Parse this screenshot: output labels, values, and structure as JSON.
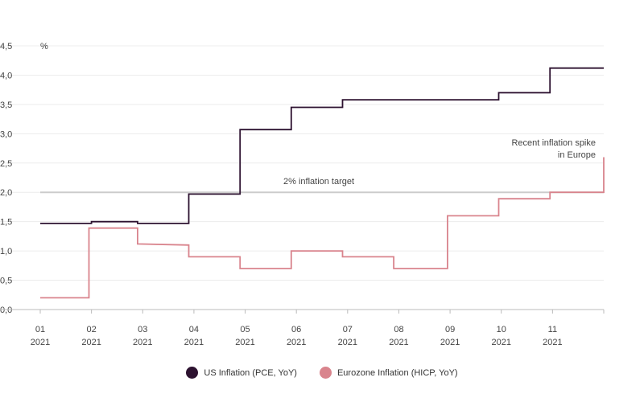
{
  "chart_data": {
    "type": "line",
    "unit_label": "%",
    "ylim": [
      0,
      4.5
    ],
    "yticks": [
      "0,0",
      "0,5",
      "1,0",
      "1,5",
      "2,0",
      "2,5",
      "3,0",
      "3,5",
      "4,0",
      "4,5"
    ],
    "ytick_values": [
      0,
      0.5,
      1,
      1.5,
      2,
      2.5,
      3,
      3.5,
      4,
      4.5
    ],
    "xticks": [
      {
        "month": "01",
        "year": "2021"
      },
      {
        "month": "02",
        "year": "2021"
      },
      {
        "month": "03",
        "year": "2021"
      },
      {
        "month": "04",
        "year": "2021"
      },
      {
        "month": "05",
        "year": "2021"
      },
      {
        "month": "06",
        "year": "2021"
      },
      {
        "month": "07",
        "year": "2021"
      },
      {
        "month": "08",
        "year": "2021"
      },
      {
        "month": "09",
        "year": "2021"
      },
      {
        "month": "10",
        "year": "2021"
      },
      {
        "month": "11",
        "year": "2021"
      }
    ],
    "grid": true,
    "legend_position": "bottom-center",
    "reference_line": {
      "value": 2.0,
      "label": "2% inflation target"
    },
    "annotation": {
      "lines": [
        "Recent inflation spike",
        "in Europe"
      ]
    },
    "series": [
      {
        "name": "US Inflation (PCE, YoY)",
        "color": "#2d1230",
        "points": [
          [
            1,
            1.47
          ],
          [
            2,
            1.47
          ],
          [
            2,
            1.5
          ],
          [
            2.9,
            1.5
          ],
          [
            2.9,
            1.47
          ],
          [
            3.9,
            1.47
          ],
          [
            3.9,
            1.97
          ],
          [
            4.9,
            1.97
          ],
          [
            4.9,
            3.07
          ],
          [
            5.9,
            3.07
          ],
          [
            5.9,
            3.45
          ],
          [
            6.9,
            3.45
          ],
          [
            6.9,
            3.58
          ],
          [
            8.95,
            3.58
          ],
          [
            9.95,
            3.58
          ],
          [
            9.95,
            3.7
          ],
          [
            10.95,
            3.7
          ],
          [
            10.95,
            4.12
          ],
          [
            12,
            4.12
          ]
        ]
      },
      {
        "name": "Eurozone Inflation (HICP, YoY)",
        "color": "#d9848d",
        "points": [
          [
            1,
            0.2
          ],
          [
            1.95,
            0.2
          ],
          [
            1.95,
            1.39
          ],
          [
            2.9,
            1.39
          ],
          [
            2.9,
            1.12
          ],
          [
            3.9,
            1.1
          ],
          [
            3.9,
            0.9
          ],
          [
            4.9,
            0.9
          ],
          [
            4.9,
            0.7
          ],
          [
            5.9,
            0.7
          ],
          [
            5.9,
            1.0
          ],
          [
            6.9,
            1.0
          ],
          [
            6.9,
            0.9
          ],
          [
            7.9,
            0.9
          ],
          [
            7.9,
            0.7
          ],
          [
            8.95,
            0.7
          ],
          [
            8.95,
            1.6
          ],
          [
            9.95,
            1.6
          ],
          [
            9.95,
            1.89
          ],
          [
            10.95,
            1.89
          ],
          [
            10.95,
            2.0
          ],
          [
            12,
            2.0
          ],
          [
            12,
            2.6
          ]
        ]
      }
    ]
  }
}
